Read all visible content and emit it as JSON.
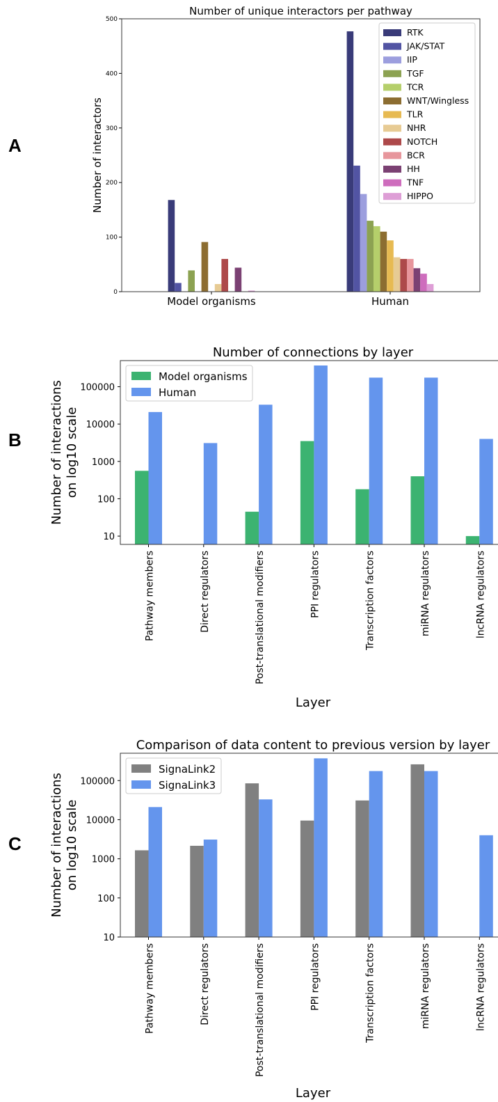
{
  "panel_labels": [
    "A",
    "B",
    "C"
  ],
  "chart_data": [
    {
      "type": "bar",
      "title": "Number of unique interactors per pathway",
      "xlabel": "",
      "ylabel": "Number of interactors",
      "ylim": [
        0,
        500
      ],
      "yticks": [
        "0",
        "100",
        "200",
        "300",
        "400",
        "500"
      ],
      "categories": [
        "Model organisms",
        "Human"
      ],
      "legend_position": "top-right",
      "series": [
        {
          "name": "RTK",
          "color": "#393b79",
          "values": [
            168,
            477
          ]
        },
        {
          "name": "JAK/STAT",
          "color": "#5254a3",
          "values": [
            16,
            231
          ]
        },
        {
          "name": "IIP",
          "color": "#9c9ede",
          "values": [
            0,
            179
          ]
        },
        {
          "name": "TGF",
          "color": "#8ca252",
          "values": [
            39,
            130
          ]
        },
        {
          "name": "TCR",
          "color": "#b5cf6b",
          "values": [
            0,
            120
          ]
        },
        {
          "name": "WNT/Wingless",
          "color": "#8c6d31",
          "values": [
            91,
            110
          ]
        },
        {
          "name": "TLR",
          "color": "#e7ba52",
          "values": [
            0,
            94
          ]
        },
        {
          "name": "NHR",
          "color": "#e7cb94",
          "values": [
            14,
            63
          ]
        },
        {
          "name": "NOTCH",
          "color": "#ad494a",
          "values": [
            60,
            60
          ]
        },
        {
          "name": "BCR",
          "color": "#e7969c",
          "values": [
            0,
            60
          ]
        },
        {
          "name": "HH",
          "color": "#7b4173",
          "values": [
            44,
            43
          ]
        },
        {
          "name": "TNF",
          "color": "#ce6dbd",
          "values": [
            0,
            33
          ]
        },
        {
          "name": "HIPPO",
          "color": "#de9ed6",
          "values": [
            2,
            14
          ]
        }
      ]
    },
    {
      "type": "bar",
      "title": "Number of connections by layer",
      "xlabel": "Layer",
      "ylabel": [
        "Number of interactions",
        "on log10 scale"
      ],
      "yscale": "log",
      "ylim": [
        6,
        500000
      ],
      "yticks": [
        "10",
        "100",
        "1000",
        "10000",
        "100000"
      ],
      "categories": [
        "Pathway members",
        "Direct regulators",
        "Post-translational modifiers",
        "PPI regulators",
        "Transcription factors",
        "miRNA regulators",
        "lncRNA regulators"
      ],
      "legend_position": "top-left",
      "series": [
        {
          "name": "Model organisms",
          "color": "#3cb371",
          "values": [
            560,
            null,
            45,
            3500,
            180,
            400,
            10
          ]
        },
        {
          "name": "Human",
          "color": "#6495ed",
          "values": [
            21000,
            3100,
            33000,
            370000,
            175000,
            175000,
            4000
          ]
        }
      ]
    },
    {
      "type": "bar",
      "title": "Comparison of data content to previous version by layer",
      "xlabel": "Layer",
      "ylabel": [
        "Number of interactions",
        "on log10 scale"
      ],
      "yscale": "log",
      "ylim": [
        10,
        500000
      ],
      "yticks": [
        "10",
        "100",
        "1000",
        "10000",
        "100000"
      ],
      "categories": [
        "Pathway members",
        "Direct regulators",
        "Post-translational modifiers",
        "PPI regulators",
        "Transcription factors",
        "miRNA regulators",
        "lncRNA regulators"
      ],
      "legend_position": "top-left",
      "series": [
        {
          "name": "SignaLink2",
          "color": "#808080",
          "values": [
            1650,
            2150,
            85000,
            9500,
            31000,
            260000,
            null
          ]
        },
        {
          "name": "SignaLink3",
          "color": "#6495ed",
          "values": [
            21000,
            3100,
            33000,
            370000,
            175000,
            175000,
            4000
          ]
        }
      ]
    }
  ]
}
